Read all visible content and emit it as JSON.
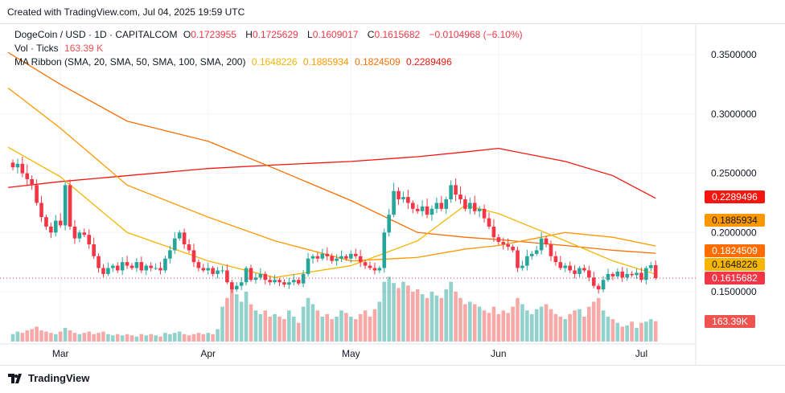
{
  "created": "Created with TradingView.com, Jul 04, 2025 19:59 UTC",
  "legend": {
    "symbol": "DogeCoin / USD · 1D · CAPITALCOM",
    "o_label": "O",
    "o": "0.1723955",
    "h_label": "H",
    "h": "0.1725629",
    "l_label": "L",
    "l": "0.1609017",
    "c_label": "C",
    "c": "0.1615682",
    "change": "−0.0104968 (−6.10%)",
    "vol_label": "Vol · Ticks",
    "vol": "163.39 K",
    "ma_label": "MA Ribbon (SMA, 20, SMA, 50, SMA, 100, SMA, 200)",
    "ma20": "0.1648226",
    "ma50": "0.1885934",
    "ma100": "0.1824509",
    "ma200": "0.2289496"
  },
  "badges": {
    "ma200": "0.2289496",
    "ma50": "0.1885934",
    "ma100": "0.1824509",
    "ma20": "0.1648226",
    "last": "0.1615682",
    "vol": "163.39K"
  },
  "footer": {
    "brand": "TradingView"
  },
  "colors": {
    "up": "#26a69a",
    "down": "#f23645",
    "ma20": "#f7b500",
    "ma50": "#ff9800",
    "ma100": "#ff6d00",
    "ma200": "#f7160f"
  },
  "chart_data": {
    "type": "candlestick",
    "start_date": "2025-02-19",
    "interval": "1D",
    "x_ticks": [
      {
        "label": "Mar",
        "date": "2025-03-01"
      },
      {
        "label": "Apr",
        "date": "2025-04-01"
      },
      {
        "label": "May",
        "date": "2025-05-01"
      },
      {
        "label": "Jun",
        "date": "2025-06-01"
      },
      {
        "label": "Jul",
        "date": "2025-07-01"
      }
    ],
    "y_ticks": [
      "0.3500000",
      "0.3000000",
      "0.2500000",
      "0.2000000",
      "0.1500000"
    ],
    "ylim": [
      0.1,
      0.36
    ],
    "grid": true,
    "close": [
      0.255,
      0.258,
      0.25,
      0.245,
      0.24,
      0.225,
      0.213,
      0.205,
      0.2,
      0.21,
      0.206,
      0.24,
      0.205,
      0.195,
      0.2,
      0.198,
      0.19,
      0.18,
      0.17,
      0.165,
      0.17,
      0.172,
      0.168,
      0.175,
      0.172,
      0.17,
      0.175,
      0.168,
      0.172,
      0.17,
      0.17,
      0.168,
      0.178,
      0.185,
      0.195,
      0.2,
      0.19,
      0.185,
      0.175,
      0.17,
      0.168,
      0.17,
      0.165,
      0.168,
      0.168,
      0.158,
      0.152,
      0.155,
      0.158,
      0.17,
      0.16,
      0.162,
      0.165,
      0.16,
      0.158,
      0.16,
      0.158,
      0.156,
      0.158,
      0.16,
      0.157,
      0.165,
      0.178,
      0.18,
      0.178,
      0.182,
      0.18,
      0.176,
      0.178,
      0.18,
      0.178,
      0.182,
      0.18,
      0.175,
      0.172,
      0.17,
      0.168,
      0.17,
      0.2,
      0.215,
      0.235,
      0.228,
      0.23,
      0.225,
      0.22,
      0.218,
      0.222,
      0.215,
      0.22,
      0.225,
      0.22,
      0.228,
      0.24,
      0.232,
      0.228,
      0.22,
      0.225,
      0.218,
      0.22,
      0.212,
      0.205,
      0.196,
      0.192,
      0.19,
      0.188,
      0.185,
      0.17,
      0.172,
      0.18,
      0.182,
      0.185,
      0.195,
      0.19,
      0.18,
      0.175,
      0.17,
      0.172,
      0.168,
      0.165,
      0.17,
      0.168,
      0.162,
      0.155,
      0.152,
      0.16,
      0.165,
      0.163,
      0.167,
      0.162,
      0.165,
      0.164,
      0.166,
      0.16,
      0.17,
      0.1723955,
      0.1615682
    ],
    "volume_k": [
      60,
      80,
      70,
      90,
      100,
      120,
      90,
      80,
      70,
      60,
      80,
      110,
      90,
      70,
      60,
      70,
      80,
      60,
      70,
      80,
      60,
      50,
      60,
      50,
      60,
      50,
      40,
      60,
      50,
      60,
      50,
      40,
      70,
      60,
      70,
      80,
      60,
      50,
      60,
      70,
      60,
      70,
      60,
      100,
      280,
      350,
      450,
      380,
      320,
      400,
      300,
      250,
      220,
      250,
      200,
      220,
      200,
      180,
      250,
      200,
      150,
      280,
      350,
      300,
      250,
      200,
      220,
      180,
      200,
      250,
      230,
      200,
      180,
      220,
      250,
      200,
      260,
      320,
      480,
      520,
      470,
      430,
      480,
      450,
      400,
      420,
      380,
      350,
      400,
      370,
      350,
      420,
      480,
      400,
      350,
      300,
      320,
      300,
      280,
      250,
      230,
      280,
      220,
      250,
      230,
      280,
      350,
      300,
      250,
      220,
      260,
      280,
      300,
      260,
      220,
      200,
      180,
      220,
      250,
      260,
      200,
      280,
      320,
      350,
      250,
      200,
      180,
      150,
      120,
      130,
      160,
      110,
      150,
      160,
      180,
      163.39
    ],
    "ma_dates": [
      "2025-02-18",
      "2025-03-01",
      "2025-03-15",
      "2025-04-01",
      "2025-04-15",
      "2025-05-01",
      "2025-05-15",
      "2025-05-25",
      "2025-06-01",
      "2025-06-15",
      "2025-06-25",
      "2025-07-04"
    ],
    "ma": {
      "sma20": [
        0.272,
        0.247,
        0.2,
        0.176,
        0.162,
        0.172,
        0.193,
        0.223,
        0.216,
        0.193,
        0.176,
        0.1648
      ],
      "sma50": [
        0.322,
        0.288,
        0.24,
        0.213,
        0.193,
        0.176,
        0.179,
        0.186,
        0.189,
        0.2,
        0.196,
        0.1886
      ],
      "sma100": [
        0.352,
        0.325,
        0.294,
        0.277,
        0.254,
        0.227,
        0.2,
        0.196,
        0.194,
        0.189,
        0.185,
        0.1825
      ],
      "sma200": [
        0.238,
        0.243,
        0.248,
        0.254,
        0.257,
        0.26,
        0.264,
        0.268,
        0.271,
        0.26,
        0.248,
        0.2289
      ]
    }
  }
}
